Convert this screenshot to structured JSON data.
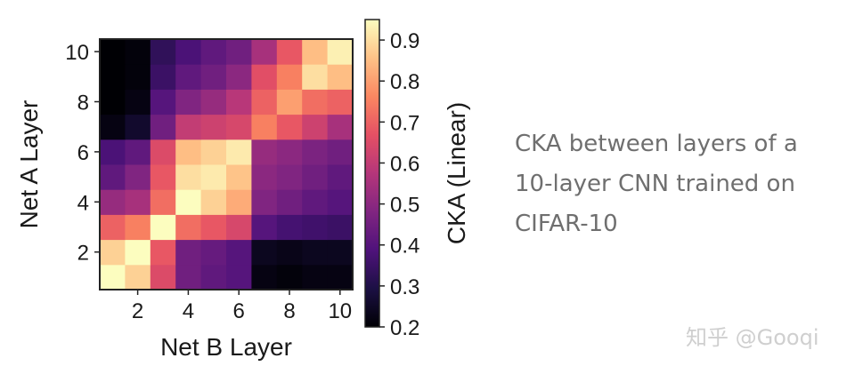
{
  "chart_data": {
    "type": "heatmap",
    "xlabel": "Net B Layer",
    "ylabel": "Net A Layer",
    "x": [
      1,
      2,
      3,
      4,
      5,
      6,
      7,
      8,
      9,
      10
    ],
    "y": [
      1,
      2,
      3,
      4,
      5,
      6,
      7,
      8,
      9,
      10
    ],
    "x_ticks": [
      2,
      4,
      6,
      8,
      10
    ],
    "y_ticks": [
      2,
      4,
      6,
      8,
      10
    ],
    "colormap": "magma",
    "colorbar": {
      "label": "CKA (Linear)",
      "range": [
        0.2,
        0.95
      ],
      "ticks": [
        0.2,
        0.3,
        0.4,
        0.5,
        0.6,
        0.7,
        0.8,
        0.9
      ]
    },
    "values": [
      [
        0.95,
        0.88,
        0.65,
        0.45,
        0.42,
        0.4,
        0.22,
        0.21,
        0.22,
        0.22
      ],
      [
        0.88,
        0.95,
        0.68,
        0.45,
        0.43,
        0.4,
        0.24,
        0.23,
        0.24,
        0.24
      ],
      [
        0.7,
        0.75,
        0.95,
        0.72,
        0.68,
        0.64,
        0.4,
        0.37,
        0.36,
        0.35
      ],
      [
        0.52,
        0.55,
        0.72,
        0.95,
        0.88,
        0.82,
        0.48,
        0.45,
        0.42,
        0.4
      ],
      [
        0.42,
        0.48,
        0.68,
        0.9,
        0.92,
        0.86,
        0.5,
        0.48,
        0.45,
        0.42
      ],
      [
        0.38,
        0.42,
        0.65,
        0.85,
        0.88,
        0.92,
        0.52,
        0.5,
        0.47,
        0.45
      ],
      [
        0.22,
        0.26,
        0.45,
        0.6,
        0.62,
        0.64,
        0.75,
        0.68,
        0.62,
        0.55
      ],
      [
        0.2,
        0.22,
        0.4,
        0.48,
        0.52,
        0.58,
        0.7,
        0.8,
        0.72,
        0.7
      ],
      [
        0.2,
        0.21,
        0.35,
        0.42,
        0.45,
        0.5,
        0.66,
        0.75,
        0.9,
        0.85
      ],
      [
        0.2,
        0.21,
        0.33,
        0.38,
        0.42,
        0.45,
        0.55,
        0.68,
        0.85,
        0.93
      ]
    ]
  },
  "caption": {
    "line1": "CKA between layers of a",
    "line2": "10-layer CNN trained on",
    "line3": "CIFAR-10"
  },
  "watermark": "知乎 @Gooqi"
}
